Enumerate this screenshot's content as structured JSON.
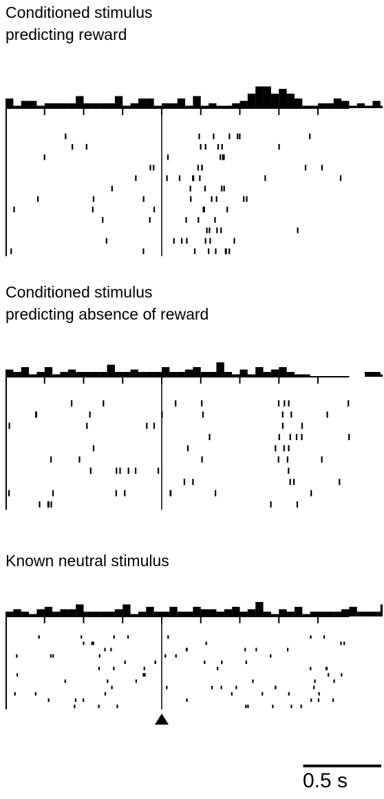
{
  "chart_data": [
    {
      "type": "raster",
      "title_lines": [
        "Conditioned stimulus",
        "predicting reward"
      ],
      "trials": 12,
      "x_range_s": [
        -1.0,
        1.2
      ],
      "bin_s": 0.05,
      "psth_counts": [
        4,
        1,
        3,
        3,
        1,
        2,
        2,
        2,
        2,
        5,
        2,
        2,
        2,
        2,
        5,
        1,
        2,
        4,
        4,
        1,
        2,
        2,
        4,
        1,
        5,
        1,
        2,
        1,
        1,
        2,
        3,
        6,
        9,
        9,
        6,
        8,
        6,
        4,
        1,
        1,
        2,
        2,
        4,
        3,
        1,
        2,
        1,
        3,
        1,
        2,
        1,
        5,
        1,
        2,
        3,
        3,
        2,
        4,
        2,
        3,
        5,
        2,
        2,
        1,
        2,
        3,
        5,
        5,
        2,
        3,
        2,
        4,
        1,
        2,
        2,
        2
      ]
    },
    {
      "type": "raster",
      "title_lines": [
        "Conditioned stimulus",
        "predicting absence of reward"
      ],
      "trials": 10,
      "x_range_s": [
        -1.0,
        1.2
      ],
      "bin_s": 0.05,
      "psth_counts": [
        3,
        2,
        4,
        1,
        2,
        4,
        1,
        2,
        3,
        2,
        2,
        2,
        2,
        5,
        2,
        2,
        3,
        2,
        2,
        2,
        4,
        2,
        2,
        3,
        4,
        2,
        2,
        6,
        2,
        1,
        3,
        1,
        4,
        2,
        3,
        4,
        2,
        1,
        1,
        0,
        0,
        0,
        0,
        0,
        0,
        0,
        2,
        2,
        1,
        2,
        1,
        2,
        3,
        2,
        2,
        2,
        3,
        2,
        6,
        2,
        1,
        2,
        2,
        3,
        4,
        2,
        2,
        1,
        2,
        1,
        3,
        2,
        3,
        2,
        3,
        2
      ]
    },
    {
      "type": "raster",
      "title_lines": [
        "Known neutral stimulus"
      ],
      "trials": 12,
      "x_range_s": [
        -1.0,
        1.2
      ],
      "bin_s": 0.05,
      "psth_counts": [
        2,
        3,
        2,
        1,
        3,
        4,
        2,
        3,
        3,
        5,
        2,
        2,
        2,
        2,
        3,
        5,
        1,
        2,
        4,
        2,
        2,
        4,
        2,
        2,
        4,
        3,
        3,
        2,
        3,
        4,
        2,
        3,
        6,
        2,
        1,
        3,
        2,
        4,
        1,
        2,
        2,
        2,
        2,
        3,
        4,
        2,
        2,
        2,
        5,
        1,
        4,
        2,
        4,
        5,
        1,
        2,
        5,
        2,
        2,
        3,
        2,
        2,
        2,
        4,
        1,
        2,
        5,
        2,
        3,
        4,
        2,
        4,
        5,
        2,
        2,
        3
      ]
    }
  ],
  "scale_bar": {
    "label": "0.5 s",
    "seconds": 0.5
  },
  "stimulus_marker": {
    "time_s": 0,
    "symbol": "▲"
  }
}
